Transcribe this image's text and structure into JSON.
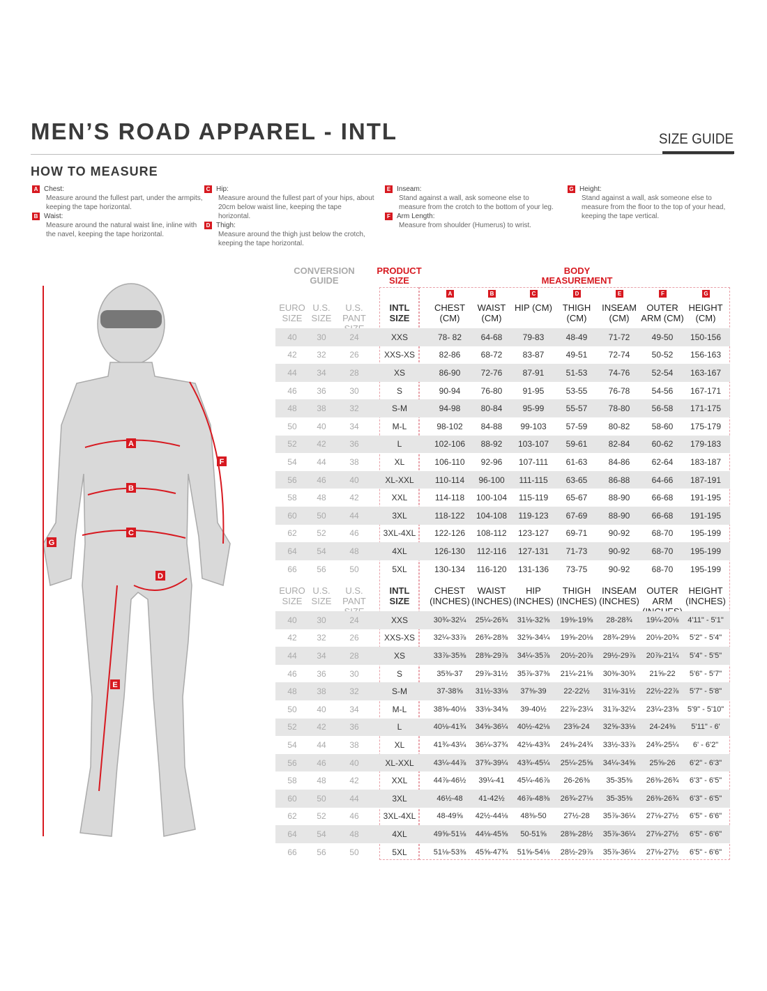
{
  "title": "MEN’S ROAD APPAREL - INTL",
  "size_guide_label": "SIZE GUIDE",
  "how_to_measure": {
    "heading": "HOW TO MEASURE",
    "items": [
      {
        "letter": "A",
        "name": "Chest:",
        "text": "Measure around the fullest part, under the armpits, keeping the tape horizontal."
      },
      {
        "letter": "B",
        "name": "Waist:",
        "text": "Measure around the natural waist line, inline with the navel, keeping the tape horizontal."
      },
      {
        "letter": "C",
        "name": "Hip:",
        "text": "Measure around the fullest part of your hips, about 20cm below waist line, keeping the tape horizontal."
      },
      {
        "letter": "D",
        "name": "Thigh:",
        "text": "Measure around the thigh just below the crotch, keeping the tape horizontal."
      },
      {
        "letter": "E",
        "name": "Inseam:",
        "text": "Stand against a wall, ask someone else to measure from the crotch to the bottom of your leg."
      },
      {
        "letter": "F",
        "name": "Arm Length:",
        "text": "Measure from shoulder (Humerus) to wrist."
      },
      {
        "letter": "G",
        "name": "Height:",
        "text": "Stand against a wall, ask someone else to measure from the floor to the top of your head, keeping the tape vertical."
      }
    ]
  },
  "accent_color": "#d71920",
  "table": {
    "group_headers": {
      "conversion": "CONVERSION GUIDE",
      "product": "PRODUCT SIZE",
      "body": "BODY MEASUREMENT"
    },
    "conversion_headers": [
      "EURO SIZE",
      "U.S. SIZE",
      "U.S. PANT SIZE"
    ],
    "intl_header": "INTL SIZE",
    "cm_headers": [
      {
        "letter": "A",
        "label": "CHEST (CM)"
      },
      {
        "letter": "B",
        "label": "WAIST (CM)"
      },
      {
        "letter": "C",
        "label": "HIP (CM)"
      },
      {
        "letter": "D",
        "label": "THIGH (CM)"
      },
      {
        "letter": "E",
        "label": "INSEAM (CM)"
      },
      {
        "letter": "F",
        "label": "OUTER ARM (CM)"
      },
      {
        "letter": "G",
        "label": "HEIGHT (CM)"
      }
    ],
    "inch_headers": [
      "CHEST (INCHES)",
      "WAIST (INCHES)",
      "HIP (INCHES)",
      "THIGH (INCHES)",
      "INSEAM (INCHES)",
      "OUTER ARM (INCHES)",
      "HEIGHT (INCHES)"
    ],
    "cm_rows": [
      [
        "40",
        "30",
        "24",
        "XXS",
        "78- 82",
        "64-68",
        "79-83",
        "48-49",
        "71-72",
        "49-50",
        "150-156"
      ],
      [
        "42",
        "32",
        "26",
        "XXS-XS",
        "82-86",
        "68-72",
        "83-87",
        "49-51",
        "72-74",
        "50-52",
        "156-163"
      ],
      [
        "44",
        "34",
        "28",
        "XS",
        "86-90",
        "72-76",
        "87-91",
        "51-53",
        "74-76",
        "52-54",
        "163-167"
      ],
      [
        "46",
        "36",
        "30",
        "S",
        "90-94",
        "76-80",
        "91-95",
        "53-55",
        "76-78",
        "54-56",
        "167-171"
      ],
      [
        "48",
        "38",
        "32",
        "S-M",
        "94-98",
        "80-84",
        "95-99",
        "55-57",
        "78-80",
        "56-58",
        "171-175"
      ],
      [
        "50",
        "40",
        "34",
        "M-L",
        "98-102",
        "84-88",
        "99-103",
        "57-59",
        "80-82",
        "58-60",
        "175-179"
      ],
      [
        "52",
        "42",
        "36",
        "L",
        "102-106",
        "88-92",
        "103-107",
        "59-61",
        "82-84",
        "60-62",
        "179-183"
      ],
      [
        "54",
        "44",
        "38",
        "XL",
        "106-110",
        "92-96",
        "107-111",
        "61-63",
        "84-86",
        "62-64",
        "183-187"
      ],
      [
        "56",
        "46",
        "40",
        "XL-XXL",
        "110-114",
        "96-100",
        "111-115",
        "63-65",
        "86-88",
        "64-66",
        "187-191"
      ],
      [
        "58",
        "48",
        "42",
        "XXL",
        "114-118",
        "100-104",
        "115-119",
        "65-67",
        "88-90",
        "66-68",
        "191-195"
      ],
      [
        "60",
        "50",
        "44",
        "3XL",
        "118-122",
        "104-108",
        "119-123",
        "67-69",
        "88-90",
        "66-68",
        "191-195"
      ],
      [
        "62",
        "52",
        "46",
        "3XL-4XL",
        "122-126",
        "108-112",
        "123-127",
        "69-71",
        "90-92",
        "68-70",
        "195-199"
      ],
      [
        "64",
        "54",
        "48",
        "4XL",
        "126-130",
        "112-116",
        "127-131",
        "71-73",
        "90-92",
        "68-70",
        "195-199"
      ],
      [
        "66",
        "56",
        "50",
        "5XL",
        "130-134",
        "116-120",
        "131-136",
        "73-75",
        "90-92",
        "68-70",
        "195-199"
      ]
    ],
    "inch_rows": [
      [
        "40",
        "30",
        "24",
        "XXS",
        "30¾-32¼",
        "25¼-26¾",
        "31⅛-32⅝",
        "19⅜-19⅝",
        "28-28¾",
        "19¼-20⅛",
        "4'11\" - 5'1\""
      ],
      [
        "42",
        "32",
        "26",
        "XXS-XS",
        "32¼-33⅞",
        "26¾-28⅜",
        "32⅝-34¼",
        "19⅝-20⅛",
        "28¾-29⅛",
        "20⅛-20¾",
        "5'2\" - 5'4\""
      ],
      [
        "44",
        "34",
        "28",
        "XS",
        "33⅞-35⅜",
        "28⅜-29⅞",
        "34¼-35⅞",
        "20½-20⅞",
        "29½-29⅞",
        "20⅞-21¼",
        "5'4\" - 5'5\""
      ],
      [
        "46",
        "36",
        "30",
        "S",
        "35⅜-37",
        "29⅞-31½",
        "35⅞-37⅜",
        "21¼-21⅝",
        "30⅜-30¾",
        "21⅝-22",
        "5'6\" - 5'7\""
      ],
      [
        "48",
        "38",
        "32",
        "S-M",
        "37-38⅝",
        "31½-33⅛",
        "37⅜-39",
        "22-22½",
        "31⅛-31½",
        "22½-22⅞",
        "5'7\" - 5'8\""
      ],
      [
        "50",
        "40",
        "34",
        "M-L",
        "38⅝-40⅛",
        "33⅛-34⅝",
        "39-40½",
        "22⅞-23¼",
        "31⅞-32¼",
        "23¼-23⅝",
        "5'9\" - 5'10\""
      ],
      [
        "52",
        "42",
        "36",
        "L",
        "40⅛-41¾",
        "34⅝-36¼",
        "40½-42⅛",
        "23⅝-24",
        "32⅝-33⅛",
        "24-24⅜",
        "5'11\" - 6'"
      ],
      [
        "54",
        "44",
        "38",
        "XL",
        "41¾-43¼",
        "36¼-37¾",
        "42⅛-43¾",
        "24⅜-24¾",
        "33½-33⅞",
        "24¾-25¼",
        "6' - 6'2\""
      ],
      [
        "56",
        "46",
        "40",
        "XL-XXL",
        "43¼-44⅞",
        "37¾-39¼",
        "43¾-45¼",
        "25¼-25⅝",
        "34¼-34⅝",
        "25⅝-26",
        "6'2\" - 6'3\""
      ],
      [
        "58",
        "48",
        "42",
        "XXL",
        "44⅞-46½",
        "39¼-41",
        "45¼-46⅞",
        "26-26⅜",
        "35-35⅜",
        "26⅜-26¾",
        "6'3\" - 6'5\""
      ],
      [
        "60",
        "50",
        "44",
        "3XL",
        "46½-48",
        "41-42½",
        "46⅞-48⅜",
        "26¾-27⅛",
        "35-35⅜",
        "26⅜-26¾",
        "6'3\" - 6'5\""
      ],
      [
        "62",
        "52",
        "46",
        "3XL-4XL",
        "48-49⅝",
        "42½-44⅛",
        "48⅜-50",
        "27½-28",
        "35⅞-36¼",
        "27⅛-27½",
        "6'5\" - 6'6\""
      ],
      [
        "64",
        "54",
        "48",
        "4XL",
        "49⅝-51⅛",
        "44⅛-45⅝",
        "50-51⅝",
        "28⅜-28½",
        "35⅞-36¼",
        "27⅛-27½",
        "6'5\" - 6'6\""
      ],
      [
        "66",
        "56",
        "50",
        "5XL",
        "51⅛-53⅜",
        "45⅝-47¾",
        "51⅝-54⅛",
        "28½-29⅞",
        "35⅞-36¼",
        "27⅛-27½",
        "6'5\" - 6'6\""
      ]
    ]
  },
  "figure": {
    "markers": [
      "A",
      "B",
      "C",
      "D",
      "E",
      "F",
      "G"
    ]
  }
}
